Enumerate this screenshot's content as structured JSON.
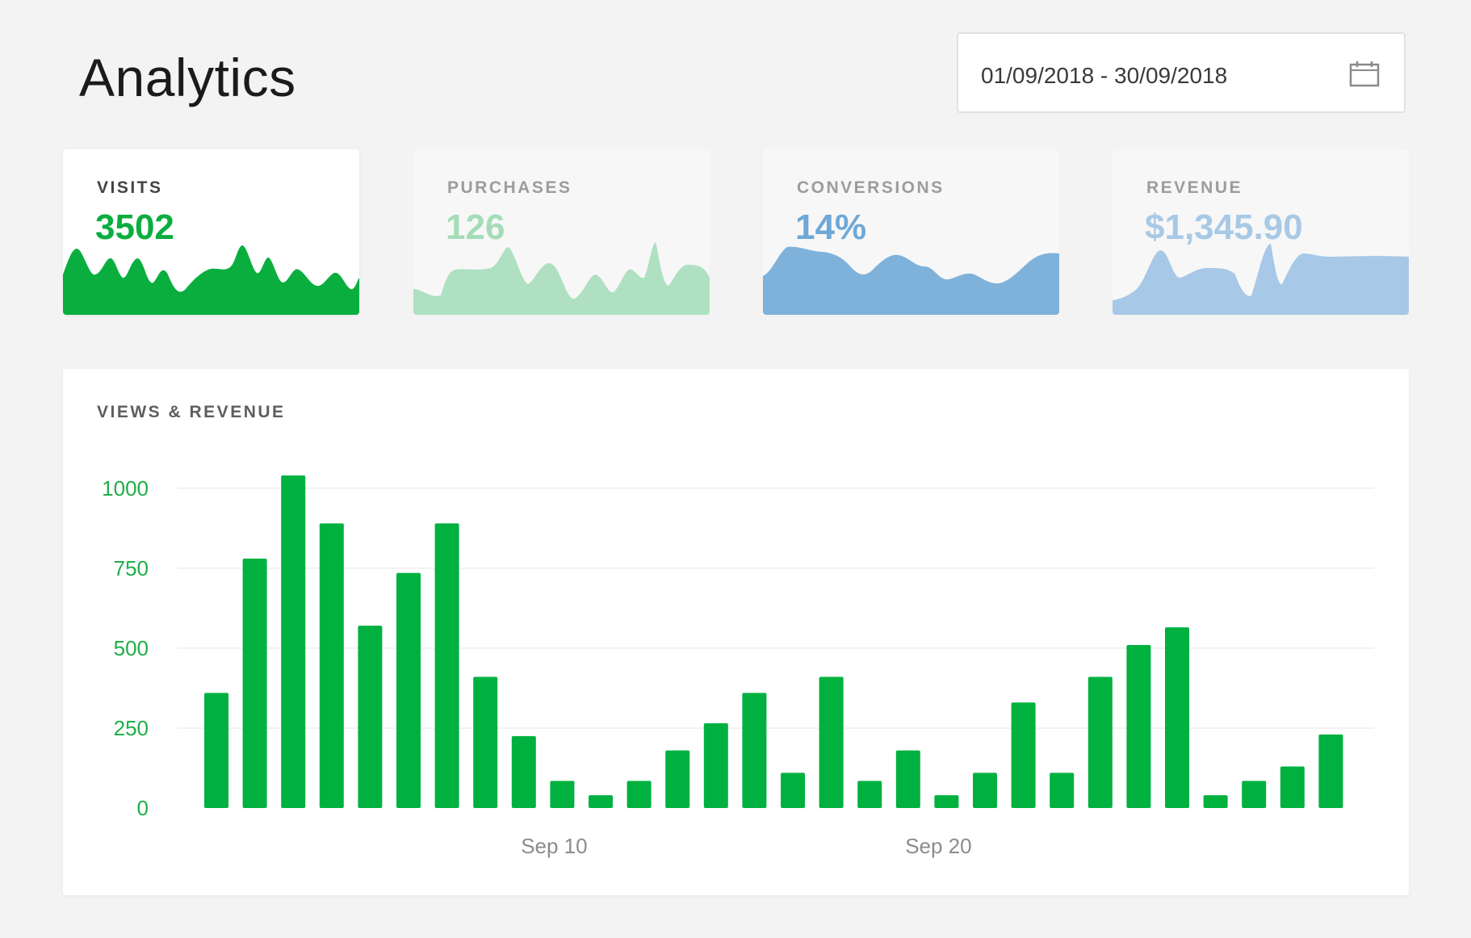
{
  "header": {
    "title": "Analytics",
    "date_range": "01/09/2018 - 30/09/2018",
    "date_icon": "calendar-icon"
  },
  "cards": [
    {
      "label": "VISITS",
      "value": "3502",
      "active": true,
      "label_color": "#444444",
      "value_color": "#0aae3f",
      "fill": "#0aae3f"
    },
    {
      "label": "PURCHASES",
      "value": "126",
      "active": false,
      "label_color": "#9c9c9c",
      "value_color": "#a5dcb8",
      "fill": "#aee0c1"
    },
    {
      "label": "CONVERSIONS",
      "value": "14%",
      "active": false,
      "label_color": "#9c9c9c",
      "value_color": "#6fa8d6",
      "fill": "#7fb2da"
    },
    {
      "label": "REVENUE",
      "value": "$1,345.90",
      "active": false,
      "label_color": "#9c9c9c",
      "value_color": "#a8c9e6",
      "fill": "#a7c8e6"
    }
  ],
  "colors": {
    "bar": "#00b140",
    "axis_text": "#1fae48",
    "x_tick_text": "#8c8c8c",
    "grid": "#eeeeee"
  },
  "chart_data": {
    "type": "bar",
    "title": "VIEWS & REVENUE",
    "x": [
      "Sep 1",
      "Sep 2",
      "Sep 3",
      "Sep 4",
      "Sep 5",
      "Sep 6",
      "Sep 7",
      "Sep 8",
      "Sep 9",
      "Sep 10",
      "Sep 11",
      "Sep 12",
      "Sep 13",
      "Sep 14",
      "Sep 15",
      "Sep 16",
      "Sep 17",
      "Sep 18",
      "Sep 19",
      "Sep 20",
      "Sep 21",
      "Sep 22",
      "Sep 23",
      "Sep 24",
      "Sep 25",
      "Sep 26",
      "Sep 27",
      "Sep 28",
      "Sep 29",
      "Sep 30"
    ],
    "values": [
      360,
      780,
      1040,
      890,
      570,
      735,
      890,
      410,
      225,
      85,
      40,
      85,
      180,
      265,
      360,
      110,
      410,
      85,
      180,
      40,
      110,
      330,
      110,
      410,
      510,
      565,
      40,
      85,
      130,
      230
    ],
    "yticks": [
      0,
      250,
      500,
      750,
      1000
    ],
    "ylim": [
      0,
      1050
    ],
    "xticks": [
      "Sep 10",
      "Sep 20"
    ],
    "xlabel": "",
    "ylabel": "",
    "grid": true
  }
}
